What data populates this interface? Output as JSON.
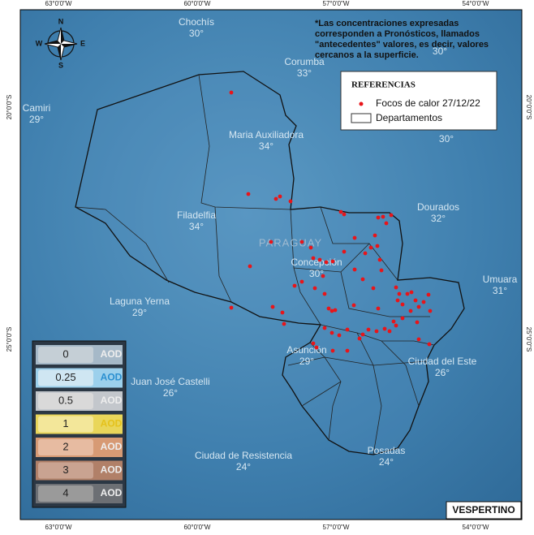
{
  "coordinates": {
    "top": [
      "63°0'0\"W",
      "60°0'0\"W",
      "57°0'0\"W",
      "54°0'0\"W"
    ],
    "bottom": [
      "63°0'0\"W",
      "60°0'0\"W",
      "57°0'0\"W",
      "54°0'0\"W"
    ],
    "left": [
      "20°0'0\"S",
      "25°0'0\"S"
    ],
    "right": [
      "20°0'0\"S",
      "25°0'0\"S"
    ]
  },
  "compass": [
    "N",
    "S",
    "E",
    "W"
  ],
  "cities": [
    {
      "name": "Chochís",
      "temp": "30°"
    },
    {
      "name": "Camiri",
      "temp": "29°"
    },
    {
      "name": "Corumba",
      "temp": "33°"
    },
    {
      "name": "Maria Auxiliadora",
      "temp": "34°"
    },
    {
      "name": "Filadelfia",
      "temp": "34°"
    },
    {
      "name": "Dourados",
      "temp": "32°"
    },
    {
      "name": "Concepción",
      "temp": "30°"
    },
    {
      "name": "Umuara",
      "temp": "31°"
    },
    {
      "name": "Laguna Yerna",
      "temp": "29°"
    },
    {
      "name": "Asunción",
      "temp": "29°"
    },
    {
      "name": "Ciudad del Este",
      "temp": "26°"
    },
    {
      "name": "Juan José Castelli",
      "temp": "26°"
    },
    {
      "name": "Ciudad de Resistencia",
      "temp": "24°"
    },
    {
      "name": "Posadas",
      "temp": "24°"
    }
  ],
  "extra_temps": [
    "30°",
    "30°"
  ],
  "country_label": "PARAGUAY",
  "note": [
    "*Las concentraciones expresadas",
    "corresponden a Pronósticos, llamados",
    "\"antecedentes\" valores, es decir, valores",
    "cercanos a la superficie."
  ],
  "legend": {
    "title": "REFERENCIAS",
    "items": [
      "Focos de calor 27/12/22",
      "Departamentos"
    ]
  },
  "aod_scale": {
    "values": [
      "0",
      "0.25",
      "0.5",
      "1",
      "2",
      "3",
      "4"
    ],
    "unit": "AOD"
  },
  "period": "VESPERTINO"
}
